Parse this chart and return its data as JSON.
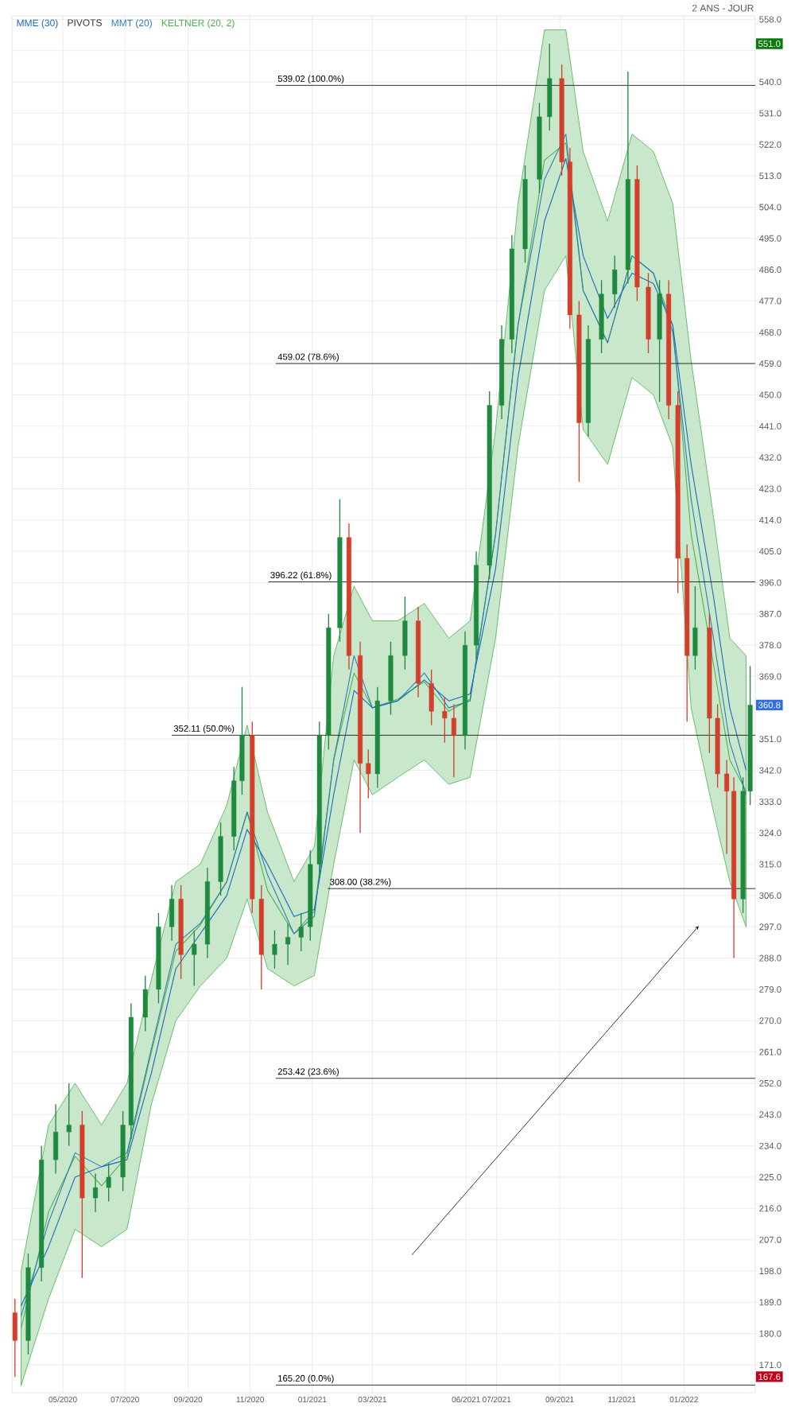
{
  "chart_data": {
    "type": "candlestick",
    "subtitle": "2 ANS - JOUR",
    "x": [
      "2020-03-15",
      "2020-03-28",
      "2020-04-10",
      "2020-04-24",
      "2020-05-07",
      "2020-05-20",
      "2020-06-02",
      "2020-06-15",
      "2020-06-29",
      "2020-07-07",
      "2020-07-21",
      "2020-08-03",
      "2020-08-16",
      "2020-08-25",
      "2020-09-07",
      "2020-09-20",
      "2020-10-03",
      "2020-10-16",
      "2020-10-24",
      "2020-11-03",
      "2020-11-12",
      "2020-11-25",
      "2020-12-08",
      "2020-12-21",
      "2020-12-30",
      "2021-01-08",
      "2021-01-17",
      "2021-01-28",
      "2021-02-06",
      "2021-02-17",
      "2021-02-25",
      "2021-03-06",
      "2021-03-19",
      "2021-04-02",
      "2021-04-15",
      "2021-04-28",
      "2021-05-11",
      "2021-05-20",
      "2021-05-31",
      "2021-06-11",
      "2021-06-24",
      "2021-07-06",
      "2021-07-16",
      "2021-07-29",
      "2021-08-12",
      "2021-08-22",
      "2021-09-03",
      "2021-09-11",
      "2021-09-20",
      "2021-09-29",
      "2021-10-12",
      "2021-10-25",
      "2021-11-07",
      "2021-11-16",
      "2021-11-27",
      "2021-12-08",
      "2021-12-17",
      "2021-12-26",
      "2022-01-04",
      "2022-01-12",
      "2022-01-26",
      "2022-02-03",
      "2022-02-12",
      "2022-02-19",
      "2022-02-28",
      "2022-03-07"
    ],
    "ohlc": [
      [
        186,
        190,
        167.6,
        178
      ],
      [
        178,
        203,
        174,
        199
      ],
      [
        199,
        234,
        195,
        230
      ],
      [
        230,
        246,
        226,
        238
      ],
      [
        238,
        252,
        234,
        240
      ],
      [
        240,
        244,
        196,
        219
      ],
      [
        219,
        226,
        215,
        222
      ],
      [
        222,
        229,
        218,
        225
      ],
      [
        225,
        244,
        221,
        240
      ],
      [
        240,
        275,
        236,
        271
      ],
      [
        271,
        283,
        267,
        279
      ],
      [
        279,
        301,
        275,
        297
      ],
      [
        297,
        309,
        293,
        305
      ],
      [
        305,
        309,
        282,
        289
      ],
      [
        289,
        296,
        280,
        292
      ],
      [
        292,
        314,
        288,
        310
      ],
      [
        310,
        327,
        306,
        323
      ],
      [
        323,
        343,
        319,
        339
      ],
      [
        339,
        366,
        335,
        352
      ],
      [
        352,
        356,
        301,
        305
      ],
      [
        305,
        309,
        279,
        289
      ],
      [
        289,
        296,
        285,
        292
      ],
      [
        292,
        298,
        286,
        294
      ],
      [
        294,
        301,
        290,
        297
      ],
      [
        297,
        319,
        293,
        315
      ],
      [
        315,
        356,
        311,
        352
      ],
      [
        352,
        387,
        348,
        383
      ],
      [
        383,
        420,
        379,
        409
      ],
      [
        409,
        413,
        371,
        375
      ],
      [
        375,
        379,
        324,
        344
      ],
      [
        344,
        348,
        334,
        341
      ],
      [
        341,
        366,
        337,
        362
      ],
      [
        362,
        379,
        358,
        375
      ],
      [
        375,
        392,
        371,
        385
      ],
      [
        385,
        389,
        363,
        367
      ],
      [
        367,
        371,
        355,
        359
      ],
      [
        359,
        363,
        350,
        357
      ],
      [
        357,
        361,
        340,
        352
      ],
      [
        352,
        382,
        348,
        378
      ],
      [
        378,
        405,
        374,
        401
      ],
      [
        401,
        451,
        397,
        447
      ],
      [
        447,
        470,
        443,
        466
      ],
      [
        466,
        496,
        462,
        492
      ],
      [
        492,
        516,
        488,
        512
      ],
      [
        512,
        534,
        508,
        530
      ],
      [
        530,
        551,
        526,
        541
      ],
      [
        541,
        545,
        513,
        517
      ],
      [
        517,
        521,
        469,
        473
      ],
      [
        473,
        477,
        425,
        442
      ],
      [
        442,
        470,
        438,
        466
      ],
      [
        466,
        483,
        462,
        479
      ],
      [
        479,
        490,
        475,
        486
      ],
      [
        486,
        543,
        482,
        512
      ],
      [
        512,
        516,
        477,
        481
      ],
      [
        481,
        485,
        462,
        466
      ],
      [
        466,
        483,
        448,
        479
      ],
      [
        479,
        483,
        443,
        447
      ],
      [
        447,
        451,
        393,
        403
      ],
      [
        403,
        407,
        356,
        375
      ],
      [
        375,
        395,
        371,
        383
      ],
      [
        383,
        387,
        347,
        357
      ],
      [
        357,
        361,
        337,
        341
      ],
      [
        341,
        345,
        318,
        336
      ],
      [
        336,
        340,
        288,
        305
      ],
      [
        305,
        340,
        301,
        336
      ],
      [
        336,
        372,
        332,
        360.8
      ]
    ],
    "colors": [
      "#d2402c",
      "#1f8a3f",
      "#1f8a3f",
      "#1f8a3f",
      "#1f8a3f",
      "#d2402c",
      "#1f8a3f",
      "#1f8a3f",
      "#1f8a3f",
      "#1f8a3f",
      "#1f8a3f",
      "#1f8a3f",
      "#1f8a3f",
      "#d2402c",
      "#1f8a3f",
      "#1f8a3f",
      "#1f8a3f",
      "#1f8a3f",
      "#1f8a3f",
      "#d2402c",
      "#d2402c",
      "#1f8a3f",
      "#1f8a3f",
      "#1f8a3f",
      "#1f8a3f",
      "#1f8a3f",
      "#1f8a3f",
      "#1f8a3f",
      "#d2402c",
      "#d2402c",
      "#d2402c",
      "#1f8a3f",
      "#1f8a3f",
      "#1f8a3f",
      "#d2402c",
      "#d2402c",
      "#d2402c",
      "#d2402c",
      "#1f8a3f",
      "#1f8a3f",
      "#1f8a3f",
      "#1f8a3f",
      "#1f8a3f",
      "#1f8a3f",
      "#1f8a3f",
      "#1f8a3f",
      "#d2402c",
      "#d2402c",
      "#d2402c",
      "#1f8a3f",
      "#1f8a3f",
      "#1f8a3f",
      "#1f8a3f",
      "#d2402c",
      "#d2402c",
      "#1f8a3f",
      "#d2402c",
      "#d2402c",
      "#d2402c",
      "#1f8a3f",
      "#d2402c",
      "#d2402c",
      "#d2402c",
      "#d2402c",
      "#1f8a3f",
      "#1f8a3f"
    ],
    "series": [
      {
        "name": "MME (30)",
        "type": "line",
        "color": "#1565c0",
        "x": [
          "2020-03-21",
          "2020-04-17",
          "2020-05-13",
          "2020-06-08",
          "2020-07-03",
          "2020-07-27",
          "2020-08-20",
          "2020-09-13",
          "2020-10-09",
          "2020-10-29",
          "2020-11-18",
          "2020-12-14",
          "2021-01-03",
          "2021-01-22",
          "2021-02-11",
          "2021-03-01",
          "2021-03-26",
          "2021-04-21",
          "2021-05-15",
          "2021-06-05",
          "2021-06-30",
          "2021-07-22",
          "2021-08-17",
          "2021-09-07",
          "2021-09-24",
          "2021-10-18",
          "2021-11-11",
          "2021-12-02",
          "2021-12-21",
          "2022-01-08",
          "2022-01-30",
          "2022-02-15",
          "2022-03-03"
        ],
        "values": [
          188,
          205,
          225,
          228,
          230,
          255,
          285,
          295,
          306,
          325,
          315,
          300,
          302,
          335,
          365,
          360,
          362,
          368,
          362,
          364,
          400,
          455,
          500,
          518,
          490,
          472,
          485,
          482,
          470,
          430,
          392,
          360,
          342
        ]
      },
      {
        "name": "MMT (20)",
        "type": "line",
        "color": "#2a7ab8",
        "x": [
          "2020-03-21",
          "2020-04-17",
          "2020-05-13",
          "2020-06-08",
          "2020-07-03",
          "2020-07-27",
          "2020-08-20",
          "2020-09-13",
          "2020-10-09",
          "2020-10-29",
          "2020-11-18",
          "2020-12-14",
          "2021-01-03",
          "2021-01-22",
          "2021-02-11",
          "2021-03-01",
          "2021-03-26",
          "2021-04-21",
          "2021-05-15",
          "2021-06-05",
          "2021-06-30",
          "2021-07-22",
          "2021-08-17",
          "2021-09-07",
          "2021-09-24",
          "2021-10-18",
          "2021-11-11",
          "2021-12-02",
          "2021-12-21",
          "2022-01-08",
          "2022-01-30",
          "2022-02-15",
          "2022-03-03"
        ],
        "values": [
          185,
          212,
          232,
          228,
          232,
          262,
          292,
          298,
          310,
          330,
          312,
          295,
          300,
          345,
          375,
          360,
          362,
          370,
          360,
          362,
          410,
          470,
          512,
          525,
          480,
          465,
          490,
          485,
          468,
          420,
          380,
          350,
          335
        ]
      },
      {
        "name": "KELTNER (20, 2)",
        "type": "line",
        "color": "#4caf50",
        "x": [
          "2020-03-21",
          "2020-04-17",
          "2020-05-13",
          "2020-06-08",
          "2020-07-03",
          "2020-07-27",
          "2020-08-20",
          "2020-09-13",
          "2020-10-09",
          "2020-10-29",
          "2020-11-18",
          "2020-12-14",
          "2021-01-03",
          "2021-01-22",
          "2021-02-11",
          "2021-03-01",
          "2021-03-26",
          "2021-04-21",
          "2021-05-15",
          "2021-06-05",
          "2021-06-30",
          "2021-07-22",
          "2021-08-17",
          "2021-09-07",
          "2021-09-24",
          "2021-10-18",
          "2021-11-11",
          "2021-12-02",
          "2021-12-21",
          "2022-01-08",
          "2022-01-30",
          "2022-02-15",
          "2022-03-03"
        ],
        "values": [
          181.5,
          215,
          231,
          222.5,
          231,
          261,
          290,
          297.5,
          310,
          330,
          307.5,
          295,
          301.5,
          345,
          370,
          360,
          362.5,
          367.5,
          359,
          362.5,
          410,
          470,
          517.5,
          522.5,
          480,
          465,
          490,
          485,
          470,
          410,
          372.5,
          345,
          336
        ],
        "lower": [
          165,
          190,
          210,
          205,
          210,
          246,
          270,
          280,
          288,
          305,
          285,
          280,
          283,
          315,
          345,
          335,
          340,
          345,
          338,
          340,
          380,
          435,
          480,
          490,
          440,
          430,
          455,
          450,
          435,
          360,
          330,
          310,
          297
        ],
        "upper": [
          198,
          240,
          252,
          240,
          252,
          282,
          310,
          315,
          332,
          355,
          330,
          310,
          320,
          375,
          395,
          385,
          385,
          390,
          380,
          385,
          440,
          505,
          555,
          555,
          520,
          500,
          525,
          520,
          505,
          460,
          415,
          380,
          375
        ]
      }
    ],
    "xlim": [
      "2020-03-12",
      "2022-03-12"
    ],
    "xticks": [
      {
        "value": "2020-05-01",
        "label": "05/2020"
      },
      {
        "value": "2020-07-01",
        "label": "07/2020"
      },
      {
        "value": "2020-09-01",
        "label": "09/2020"
      },
      {
        "value": "2020-11-01",
        "label": "11/2020"
      },
      {
        "value": "2021-01-01",
        "label": "01/2021"
      },
      {
        "value": "2021-03-01",
        "label": "03/2021"
      },
      {
        "value": "2021-06-01",
        "label": "06/2021"
      },
      {
        "value": "2021-07-01",
        "label": "07/2021"
      },
      {
        "value": "2021-09-01",
        "label": "09/2021"
      },
      {
        "value": "2021-11-01",
        "label": "11/2021"
      },
      {
        "value": "2022-01-01",
        "label": "01/2022"
      }
    ],
    "ylim": [
      163,
      559
    ],
    "yticks": [
      {
        "value": 171,
        "label": "171.0"
      },
      {
        "value": 180,
        "label": "180.0"
      },
      {
        "value": 189,
        "label": "189.0"
      },
      {
        "value": 198,
        "label": "198.0"
      },
      {
        "value": 207,
        "label": "207.0"
      },
      {
        "value": 216,
        "label": "216.0"
      },
      {
        "value": 225,
        "label": "225.0"
      },
      {
        "value": 234,
        "label": "234.0"
      },
      {
        "value": 243,
        "label": "243.0"
      },
      {
        "value": 252,
        "label": "252.0"
      },
      {
        "value": 261,
        "label": "261.0"
      },
      {
        "value": 270,
        "label": "270.0"
      },
      {
        "value": 279,
        "label": "279.0"
      },
      {
        "value": 288,
        "label": "288.0"
      },
      {
        "value": 297,
        "label": "297.0"
      },
      {
        "value": 306,
        "label": "306.0"
      },
      {
        "value": 315,
        "label": "315.0"
      },
      {
        "value": 324,
        "label": "324.0"
      },
      {
        "value": 333,
        "label": "333.0"
      },
      {
        "value": 342,
        "label": "342.0"
      },
      {
        "value": 351,
        "label": "351.0"
      },
      {
        "value": 360,
        "label": null
      },
      {
        "value": 369,
        "label": "369.0"
      },
      {
        "value": 378,
        "label": "378.0"
      },
      {
        "value": 387,
        "label": "387.0"
      },
      {
        "value": 396,
        "label": "396.0"
      },
      {
        "value": 405,
        "label": "405.0"
      },
      {
        "value": 414,
        "label": "414.0"
      },
      {
        "value": 423,
        "label": "423.0"
      },
      {
        "value": 432,
        "label": "432.0"
      },
      {
        "value": 441,
        "label": "441.0"
      },
      {
        "value": 450,
        "label": "450.0"
      },
      {
        "value": 459,
        "label": "459.0"
      },
      {
        "value": 468,
        "label": "468.0"
      },
      {
        "value": 477,
        "label": "477.0"
      },
      {
        "value": 486,
        "label": "486.0"
      },
      {
        "value": 495,
        "label": "495.0"
      },
      {
        "value": 504,
        "label": "504.0"
      },
      {
        "value": 513,
        "label": "513.0"
      },
      {
        "value": 522,
        "label": "522.0"
      },
      {
        "value": 531,
        "label": "531.0"
      },
      {
        "value": 540,
        "label": "540.0"
      },
      {
        "value": 549,
        "label": null
      },
      {
        "value": 558,
        "label": "558.0"
      }
    ],
    "ref_lines": [
      {
        "axis": "y",
        "value": 539.02,
        "label": "539.02  (100.0%)",
        "color": "#000000"
      },
      {
        "axis": "y",
        "value": 459.02,
        "label": "459.02  (78.6%)",
        "color": "#000000"
      },
      {
        "axis": "y",
        "value": 396.22,
        "label": "396.22  (61.8%)",
        "color": "#000000"
      },
      {
        "axis": "y",
        "value": 352.11,
        "label": "352.11  (50.0%)",
        "color": "#000000"
      },
      {
        "axis": "y",
        "value": 308.0,
        "label": "308.00  (38.2%)",
        "color": "#000000"
      },
      {
        "axis": "y",
        "value": 253.42,
        "label": "253.42  (23.6%)",
        "color": "#000000"
      },
      {
        "axis": "y",
        "value": 165.2,
        "label": "165.20  (0.0%)",
        "color": "#000000"
      }
    ],
    "annotations": [
      "PIVOTS",
      "551.0",
      {
        "text": "360.8",
        "x": "2022-03-12",
        "y": 360.8
      },
      "167.6"
    ],
    "grid": true,
    "legend": "top left"
  }
}
